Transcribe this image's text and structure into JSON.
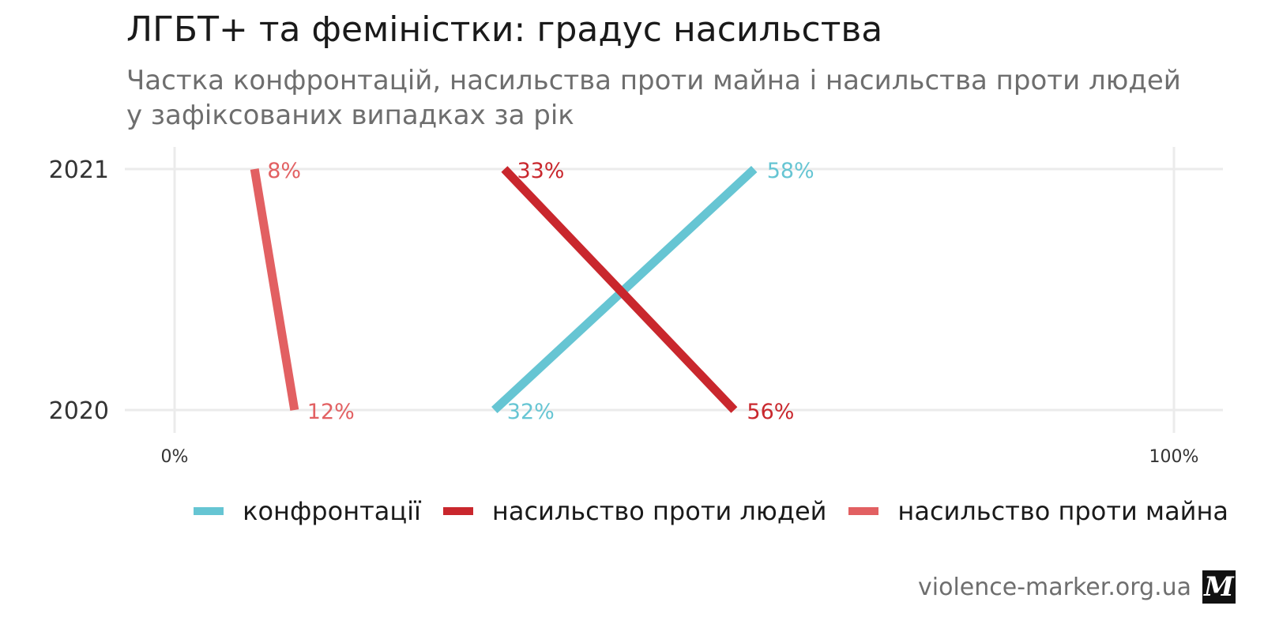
{
  "chart_data": {
    "type": "line",
    "title": "ЛГБТ+ та феміністки: градус насильства",
    "subtitle": "Частка конфронтацій, насильства проти майна і насильства проти людей у зафіксованих випадках за рік",
    "x_axis": {
      "range": [
        0,
        100
      ],
      "ticks": [
        0,
        100
      ],
      "tick_labels": [
        "0%",
        "100%"
      ]
    },
    "y_axis": {
      "categories": [
        "2020",
        "2021"
      ]
    },
    "grid": true,
    "legend_position": "bottom",
    "series": [
      {
        "name": "конфронтації",
        "color": "#66C5D3",
        "points": [
          {
            "year": "2020",
            "value": 32,
            "label": "32%"
          },
          {
            "year": "2021",
            "value": 58,
            "label": "58%"
          }
        ]
      },
      {
        "name": "насильство проти людей",
        "color": "#C9272D",
        "points": [
          {
            "year": "2020",
            "value": 56,
            "label": "56%"
          },
          {
            "year": "2021",
            "value": 33,
            "label": "33%"
          }
        ]
      },
      {
        "name": "насильство проти майна",
        "color": "#E26062",
        "points": [
          {
            "year": "2020",
            "value": 12,
            "label": "12%"
          },
          {
            "year": "2021",
            "value": 8,
            "label": "8%"
          }
        ]
      }
    ]
  },
  "footer": {
    "source": "violence-marker.org.ua",
    "logo_letter": "M"
  }
}
